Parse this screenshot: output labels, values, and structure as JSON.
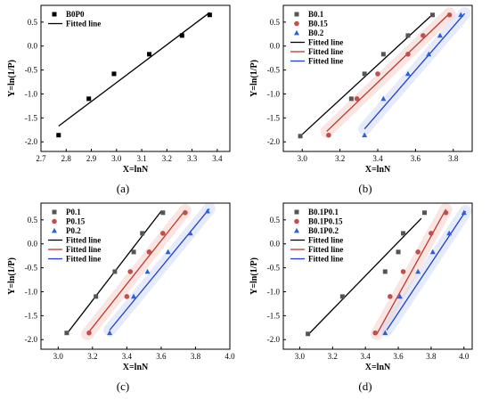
{
  "chart_data": [
    {
      "type": "scatter",
      "panel_label": "(a)",
      "xlabel": "X=lnN",
      "ylabel": "Y=ln(1/P)",
      "xlim": [
        2.7,
        3.45
      ],
      "ylim": [
        -2.2,
        0.85
      ],
      "xticks": [
        "2.7",
        "2.8",
        "2.9",
        "3.0",
        "3.1",
        "3.2",
        "3.3",
        "3.4"
      ],
      "yticks": [
        "-2.0",
        "-1.5",
        "-1.0",
        "-0.5",
        "0.0",
        "0.5"
      ],
      "legend_position": "top-left",
      "series": [
        {
          "name": "B0P0",
          "marker": "square",
          "color": "#000000",
          "points": [
            [
              2.77,
              -1.86
            ],
            [
              2.89,
              -1.1
            ],
            [
              2.99,
              -0.58
            ],
            [
              3.13,
              -0.17
            ],
            [
              3.26,
              0.22
            ],
            [
              3.37,
              0.65
            ]
          ]
        }
      ],
      "fitted_lines": [
        {
          "name": "Fitted line",
          "color": "#000000",
          "from": [
            2.77,
            -1.67
          ],
          "to": [
            3.37,
            0.7
          ]
        }
      ]
    },
    {
      "type": "scatter",
      "panel_label": "(b)",
      "xlabel": "X=lnN",
      "ylabel": "Y=ln(1/P)",
      "xlim": [
        2.9,
        3.9
      ],
      "ylim": [
        -2.2,
        0.85
      ],
      "xticks": [
        "3.0",
        "3.2",
        "3.4",
        "3.6",
        "3.8"
      ],
      "yticks": [
        "-2.0",
        "-1.5",
        "-1.0",
        "-0.5",
        "0.0",
        "0.5"
      ],
      "legend_position": "top-left",
      "series": [
        {
          "name": "B0.1",
          "marker": "square",
          "color": "#555555",
          "points": [
            [
              2.99,
              -1.88
            ],
            [
              3.26,
              -1.1
            ],
            [
              3.33,
              -0.58
            ],
            [
              3.43,
              -0.17
            ],
            [
              3.56,
              0.22
            ],
            [
              3.69,
              0.65
            ]
          ]
        },
        {
          "name": "B0.15",
          "marker": "circle",
          "color": "#c0504d",
          "points": [
            [
              3.14,
              -1.86
            ],
            [
              3.29,
              -1.1
            ],
            [
              3.4,
              -0.58
            ],
            [
              3.56,
              -0.17
            ],
            [
              3.64,
              0.22
            ],
            [
              3.78,
              0.65
            ]
          ]
        },
        {
          "name": "B0.2",
          "marker": "triangle",
          "color": "#2e5fd8",
          "points": [
            [
              3.33,
              -1.86
            ],
            [
              3.43,
              -1.1
            ],
            [
              3.56,
              -0.58
            ],
            [
              3.67,
              -0.17
            ],
            [
              3.73,
              0.22
            ],
            [
              3.84,
              0.65
            ]
          ]
        }
      ],
      "fitted_lines": [
        {
          "name": "Fitted line",
          "color": "#000000",
          "from": [
            2.99,
            -1.88
          ],
          "to": [
            3.69,
            0.66
          ]
        },
        {
          "name": "Fitted line",
          "color": "#c0392b",
          "from": [
            3.13,
            -1.78
          ],
          "to": [
            3.78,
            0.68
          ]
        },
        {
          "name": "Fitted line",
          "color": "#1f3fcf",
          "from": [
            3.33,
            -1.73
          ],
          "to": [
            3.86,
            0.68
          ]
        }
      ]
    },
    {
      "type": "scatter",
      "panel_label": "(c)",
      "xlabel": "X=lnN",
      "ylabel": "Y=ln(1/P)",
      "xlim": [
        2.9,
        4.0
      ],
      "ylim": [
        -2.2,
        0.85
      ],
      "xticks": [
        "3.0",
        "3.2",
        "3.4",
        "3.6",
        "3.8",
        "4.0"
      ],
      "yticks": [
        "-2.0",
        "-1.5",
        "-1.0",
        "-0.5",
        "0.0",
        "0.5"
      ],
      "legend_position": "top-left",
      "series": [
        {
          "name": "P0.1",
          "marker": "square",
          "color": "#555555",
          "points": [
            [
              3.05,
              -1.86
            ],
            [
              3.22,
              -1.1
            ],
            [
              3.33,
              -0.58
            ],
            [
              3.44,
              -0.17
            ],
            [
              3.49,
              0.22
            ],
            [
              3.61,
              0.65
            ]
          ]
        },
        {
          "name": "P0.15",
          "marker": "circle",
          "color": "#c0504d",
          "points": [
            [
              3.18,
              -1.86
            ],
            [
              3.4,
              -1.1
            ],
            [
              3.42,
              -0.58
            ],
            [
              3.53,
              -0.17
            ],
            [
              3.61,
              0.22
            ],
            [
              3.74,
              0.65
            ]
          ]
        },
        {
          "name": "P0.2",
          "marker": "triangle",
          "color": "#2e5fd8",
          "points": [
            [
              3.3,
              -1.86
            ],
            [
              3.44,
              -1.1
            ],
            [
              3.52,
              -0.58
            ],
            [
              3.64,
              -0.17
            ],
            [
              3.77,
              0.22
            ],
            [
              3.87,
              0.68
            ]
          ]
        }
      ],
      "fitted_lines": [
        {
          "name": "Fitted line",
          "color": "#000000",
          "from": [
            3.05,
            -1.88
          ],
          "to": [
            3.6,
            0.68
          ]
        },
        {
          "name": "Fitted line",
          "color": "#c0392b",
          "from": [
            3.17,
            -1.88
          ],
          "to": [
            3.74,
            0.7
          ]
        },
        {
          "name": "Fitted line",
          "color": "#1f3fcf",
          "from": [
            3.3,
            -1.8
          ],
          "to": [
            3.88,
            0.73
          ]
        }
      ]
    },
    {
      "type": "scatter",
      "panel_label": "(d)",
      "xlabel": "X=lnN",
      "ylabel": "Y=ln(1/P)",
      "xlim": [
        2.9,
        4.05
      ],
      "ylim": [
        -2.2,
        0.85
      ],
      "xticks": [
        "3.0",
        "3.2",
        "3.4",
        "3.6",
        "3.8",
        "4.0"
      ],
      "yticks": [
        "-2.0",
        "-1.5",
        "-1.0",
        "-0.5",
        "0.0",
        "0.5"
      ],
      "legend_position": "top-left",
      "series": [
        {
          "name": "B0.1P0.1",
          "marker": "square",
          "color": "#555555",
          "points": [
            [
              3.05,
              -1.88
            ],
            [
              3.26,
              -1.1
            ],
            [
              3.52,
              -0.58
            ],
            [
              3.6,
              -0.17
            ],
            [
              3.63,
              0.22
            ],
            [
              3.76,
              0.65
            ]
          ]
        },
        {
          "name": "B0.1P0.15",
          "marker": "circle",
          "color": "#c0504d",
          "points": [
            [
              3.46,
              -1.86
            ],
            [
              3.55,
              -1.1
            ],
            [
              3.63,
              -0.58
            ],
            [
              3.72,
              -0.17
            ],
            [
              3.8,
              0.22
            ],
            [
              3.89,
              0.65
            ]
          ]
        },
        {
          "name": "B0.1P0.2",
          "marker": "triangle",
          "color": "#2e5fd8",
          "points": [
            [
              3.52,
              -1.86
            ],
            [
              3.61,
              -1.1
            ],
            [
              3.72,
              -0.58
            ],
            [
              3.81,
              -0.17
            ],
            [
              3.91,
              0.22
            ],
            [
              4.0,
              0.65
            ]
          ]
        }
      ],
      "fitted_lines": [
        {
          "name": "Fitted line",
          "color": "#000000",
          "from": [
            3.05,
            -1.9
          ],
          "to": [
            3.74,
            0.53
          ]
        },
        {
          "name": "Fitted line",
          "color": "#c0392b",
          "from": [
            3.47,
            -1.88
          ],
          "to": [
            3.89,
            0.72
          ]
        },
        {
          "name": "Fitted line",
          "color": "#1f3fcf",
          "from": [
            3.53,
            -1.8
          ],
          "to": [
            4.01,
            0.68
          ]
        }
      ]
    }
  ]
}
